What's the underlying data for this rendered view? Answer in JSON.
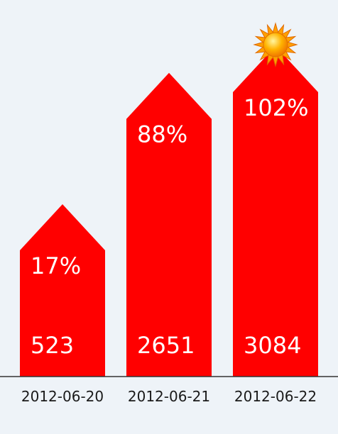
{
  "chart_data": {
    "type": "bar",
    "bar_shape": "arrow-up",
    "categories": [
      "2012-06-20",
      "2012-06-21",
      "2012-06-22"
    ],
    "values": [
      523,
      2651,
      3084
    ],
    "percent_labels": [
      "17%",
      "88%",
      "102%"
    ],
    "percent_values": [
      17,
      88,
      102
    ],
    "ylim": [
      0,
      3084
    ],
    "grid": false,
    "bar_color": "#ff0000",
    "background_color": "#eef3f8",
    "axis_color": "#333333",
    "marker": {
      "category_index": 2,
      "icon": "sun-icon"
    }
  }
}
